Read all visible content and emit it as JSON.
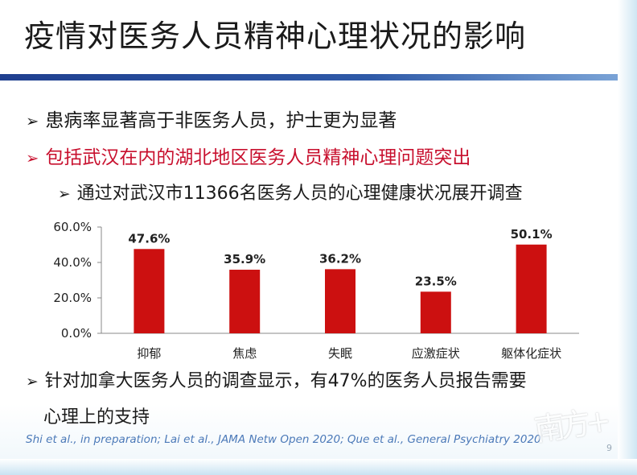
{
  "slide": {
    "title": "疫情对医务人员精神心理状况的影响",
    "bullets": [
      {
        "marker": "➢",
        "text": "患病率显著高于非医务人员，护士更为显著"
      },
      {
        "marker": "➢",
        "text": "包括武汉在内的湖北地区医务人员精神心理问题突出"
      },
      {
        "marker": "➢",
        "text": "通过对武汉市11366名医务人员的心理健康状况展开调查"
      },
      {
        "marker": "➢",
        "text": "针对加拿大医务人员的调查显示，有47%的医务人员报告需要"
      }
    ],
    "bullet4_continuation": "心理上的支持",
    "citation": "Shi et al., in preparation; Lai et al., JAMA Netw Open 2020; Que et al., General Psychiatry 2020",
    "page_number": "9",
    "watermark_text": "南方+",
    "colors": {
      "title_rule": "#1f3f8f",
      "highlight_text": "#c8102e",
      "bar": "#cc1010",
      "citation": "#4b79b8"
    }
  },
  "chart_data": {
    "type": "bar",
    "categories": [
      "抑郁",
      "焦虑",
      "失眠",
      "应激症状",
      "躯体化症状"
    ],
    "values": [
      47.6,
      35.9,
      36.2,
      23.5,
      50.1
    ],
    "data_labels": [
      "47.6%",
      "35.9%",
      "36.2%",
      "23.5%",
      "50.1%"
    ],
    "y_ticks": [
      0,
      20,
      40,
      60
    ],
    "y_tick_labels": [
      "0.0%",
      "20.0%",
      "40.0%",
      "60.0%"
    ],
    "ylim": [
      0,
      60
    ],
    "title": "",
    "xlabel": "",
    "ylabel": "",
    "grid": false,
    "bar_color": "#cc1010"
  }
}
